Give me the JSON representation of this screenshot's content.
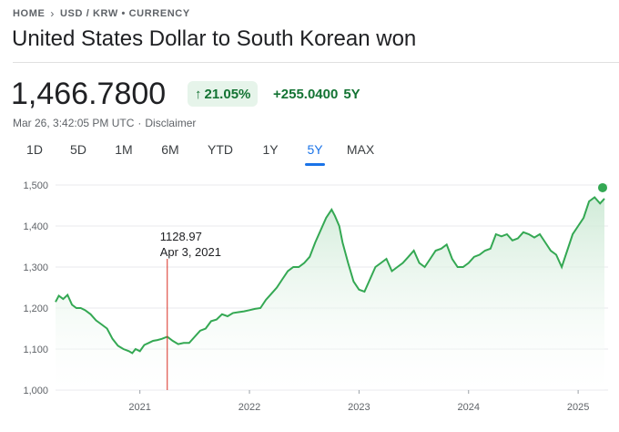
{
  "breadcrumb": {
    "home": "HOME",
    "pair": "USD / KRW • CURRENCY"
  },
  "title": "United States Dollar to South Korean won",
  "price": "1,466.7800",
  "change": {
    "arrow": "↑",
    "percent": "21.05%",
    "absolute": "+255.0400",
    "period": "5Y"
  },
  "meta": {
    "timestamp": "Mar 26, 3:42:05 PM UTC",
    "separator": "·",
    "disclaimer": "Disclaimer"
  },
  "tabs": [
    {
      "label": "1D",
      "active": false
    },
    {
      "label": "5D",
      "active": false
    },
    {
      "label": "1M",
      "active": false
    },
    {
      "label": "6M",
      "active": false
    },
    {
      "label": "YTD",
      "active": false
    },
    {
      "label": "1Y",
      "active": false
    },
    {
      "label": "5Y",
      "active": true
    },
    {
      "label": "MAX",
      "active": false
    }
  ],
  "colors": {
    "line": "#34a853",
    "fill_top": "#ceead6",
    "cursor": "#d93025",
    "accent": "#1a73e8"
  },
  "chart_data": {
    "type": "area",
    "ylim": [
      1000,
      1500
    ],
    "xlim": [
      2020.23,
      2025.24
    ],
    "y_ticks": [
      "1,000",
      "1,100",
      "1,200",
      "1,300",
      "1,400",
      "1,500"
    ],
    "y_tick_values": [
      1000,
      1100,
      1200,
      1300,
      1400,
      1500
    ],
    "x_ticks": [
      "2021",
      "2022",
      "2023",
      "2024",
      "2025"
    ],
    "x_tick_values": [
      2021,
      2022,
      2023,
      2024,
      2025
    ],
    "grid": true,
    "tooltip": {
      "value": "1128.97",
      "date": "Apr 3, 2021",
      "x": 2021.25
    },
    "series": [
      {
        "x": [
          2020.23,
          2020.26,
          2020.3,
          2020.34,
          2020.38,
          2020.42,
          2020.46,
          2020.5,
          2020.55,
          2020.6,
          2020.65,
          2020.7,
          2020.75,
          2020.8,
          2020.85,
          2020.9,
          2020.93,
          2020.96,
          2021.0,
          2021.04,
          2021.08,
          2021.12,
          2021.16,
          2021.2,
          2021.25,
          2021.3,
          2021.35,
          2021.4,
          2021.45,
          2021.5,
          2021.55,
          2021.6,
          2021.65,
          2021.7,
          2021.75,
          2021.8,
          2021.85,
          2021.9,
          2021.95,
          2022.0,
          2022.05,
          2022.1,
          2022.15,
          2022.2,
          2022.25,
          2022.3,
          2022.35,
          2022.4,
          2022.45,
          2022.5,
          2022.55,
          2022.6,
          2022.65,
          2022.7,
          2022.75,
          2022.78,
          2022.82,
          2022.85,
          2022.9,
          2022.95,
          2023.0,
          2023.05,
          2023.1,
          2023.15,
          2023.2,
          2023.25,
          2023.3,
          2023.35,
          2023.4,
          2023.45,
          2023.5,
          2023.55,
          2023.6,
          2023.65,
          2023.7,
          2023.75,
          2023.8,
          2023.85,
          2023.9,
          2023.95,
          2024.0,
          2024.05,
          2024.1,
          2024.15,
          2024.2,
          2024.25,
          2024.3,
          2024.35,
          2024.4,
          2024.45,
          2024.5,
          2024.55,
          2024.6,
          2024.65,
          2024.7,
          2024.75,
          2024.8,
          2024.85,
          2024.9,
          2024.95,
          2025.0,
          2025.05,
          2025.1,
          2025.15,
          2025.2,
          2025.24
        ],
        "y": [
          1215,
          1230,
          1222,
          1232,
          1208,
          1200,
          1200,
          1195,
          1185,
          1170,
          1160,
          1150,
          1125,
          1108,
          1100,
          1095,
          1090,
          1100,
          1095,
          1110,
          1115,
          1120,
          1122,
          1125,
          1130,
          1120,
          1112,
          1115,
          1115,
          1130,
          1145,
          1150,
          1168,
          1172,
          1185,
          1180,
          1188,
          1190,
          1192,
          1195,
          1198,
          1200,
          1220,
          1235,
          1250,
          1270,
          1290,
          1300,
          1300,
          1310,
          1325,
          1360,
          1390,
          1420,
          1440,
          1425,
          1400,
          1360,
          1310,
          1265,
          1245,
          1240,
          1270,
          1300,
          1310,
          1320,
          1290,
          1300,
          1310,
          1325,
          1340,
          1310,
          1300,
          1320,
          1340,
          1345,
          1355,
          1320,
          1300,
          1300,
          1310,
          1325,
          1330,
          1340,
          1345,
          1380,
          1375,
          1380,
          1365,
          1370,
          1385,
          1380,
          1372,
          1380,
          1360,
          1340,
          1330,
          1300,
          1340,
          1380,
          1400,
          1420,
          1460,
          1470,
          1455,
          1466.78
        ]
      }
    ]
  }
}
